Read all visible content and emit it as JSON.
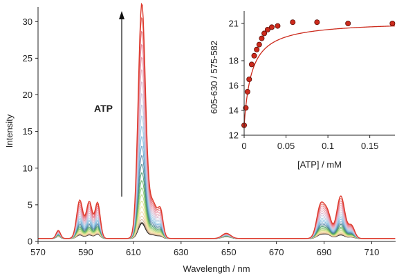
{
  "chart_data": [
    {
      "type": "line",
      "xlabel": "Wavelength / nm",
      "ylabel": "Intensity",
      "xlim": [
        570,
        720
      ],
      "ylim": [
        0,
        32
      ],
      "x_ticks": [
        570,
        590,
        610,
        630,
        650,
        670,
        690,
        710
      ],
      "y_ticks": [
        0,
        5,
        10,
        15,
        20,
        25,
        30
      ],
      "grid": false,
      "annotation": {
        "text": "ATP",
        "arrow": "up"
      },
      "colors": [
        "#1a1a1a",
        "#7a6a5a",
        "#c9a98a",
        "#e8c7a0",
        "#f2d8a6",
        "#efe39a",
        "#d8e08a",
        "#b6d57a",
        "#8cc86e",
        "#5fb05e",
        "#4a9b6a",
        "#4a8a8a",
        "#5a86a8",
        "#6aa2c8",
        "#7cb6dc",
        "#8ec4e2",
        "#a6cbe4",
        "#bcc8e0",
        "#cfc2dc",
        "#dcb8d0",
        "#e4aec0",
        "#e89aa8",
        "#e8849a",
        "#e6707a",
        "#e35a52",
        "#de3b2e"
      ],
      "peaks": [
        {
          "center": 578.5,
          "sigma": 0.9
        },
        {
          "center": 587.5,
          "sigma": 1.3
        },
        {
          "center": 591.5,
          "sigma": 1.3
        },
        {
          "center": 595,
          "sigma": 1.1
        },
        {
          "center": 613.5,
          "sigma": 1.5
        },
        {
          "center": 618,
          "sigma": 2.2
        },
        {
          "center": 621.5,
          "sigma": 1.0
        },
        {
          "center": 649,
          "sigma": 1.8
        },
        {
          "center": 688.5,
          "sigma": 1.6
        },
        {
          "center": 691.5,
          "sigma": 1.5
        },
        {
          "center": 697,
          "sigma": 1.7
        },
        {
          "center": 701.5,
          "sigma": 1.3
        }
      ],
      "series": [
        {
          "amplitudes": [
            0.3,
            0.5,
            0.5,
            0.6,
            2.0,
            0.5,
            0.2,
            0.25,
            0.5,
            0.5,
            0.5,
            0.2
          ]
        },
        {
          "amplitudes": [
            1.1,
            5.2,
            5.0,
            4.8,
            31.5,
            5.0,
            2.7,
            0.7,
            4.4,
            3.2,
            5.8,
            1.7
          ]
        }
      ],
      "baseline": 0.4,
      "curve_count": 26
    },
    {
      "type": "scatter",
      "xlabel": "[ATP] / mM",
      "ylabel": "605-630 / 575-582",
      "xlim": [
        0,
        0.18
      ],
      "ylim": [
        12,
        22
      ],
      "x_ticks": [
        0,
        0.05,
        0.1,
        0.15
      ],
      "y_ticks": [
        12,
        14,
        16,
        18,
        21
      ],
      "grid": false,
      "point_color": "#cc2a1c",
      "fit_color": "#cc2a1c",
      "points": [
        [
          0.0,
          12.8
        ],
        [
          0.002,
          14.2
        ],
        [
          0.004,
          15.5
        ],
        [
          0.006,
          16.5
        ],
        [
          0.009,
          17.7
        ],
        [
          0.012,
          18.4
        ],
        [
          0.015,
          18.9
        ],
        [
          0.018,
          19.3
        ],
        [
          0.021,
          19.8
        ],
        [
          0.024,
          20.2
        ],
        [
          0.028,
          20.5
        ],
        [
          0.033,
          20.7
        ],
        [
          0.04,
          20.8
        ],
        [
          0.058,
          21.1
        ],
        [
          0.087,
          21.1
        ],
        [
          0.124,
          21.0
        ],
        [
          0.177,
          21.0
        ]
      ],
      "fit": {
        "y0": 12.8,
        "dy": 8.4,
        "k": 0.009
      }
    }
  ]
}
